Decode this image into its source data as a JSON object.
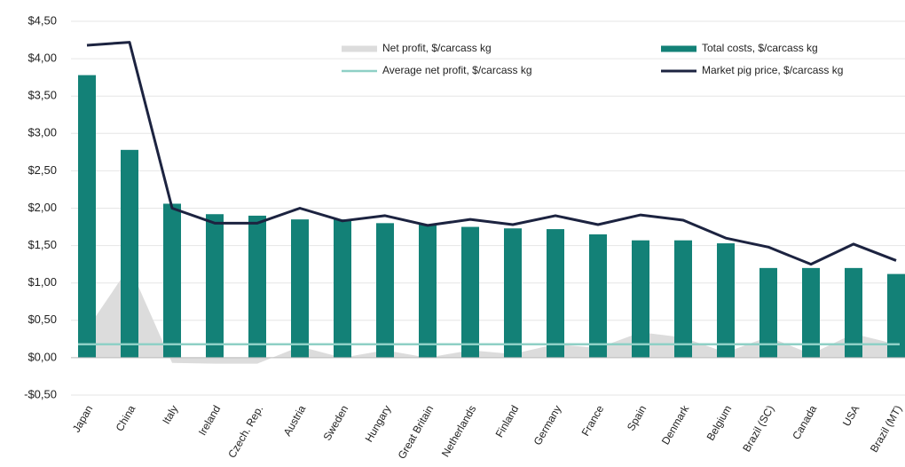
{
  "chart_data": {
    "type": "combo",
    "categories": [
      "Japan",
      "China",
      "Italy",
      "Ireland",
      "Czech. Rep.",
      "Austria",
      "Sweden",
      "Hungary",
      "Great Britain",
      "Netherlands",
      "Finland",
      "Germany",
      "France",
      "Spain",
      "Denmark",
      "Belgium",
      "Brazil (SC)",
      "Canada",
      "USA",
      "Brazil (MT)"
    ],
    "series": [
      {
        "name": "Net profit, $/carcass kg",
        "kind": "area",
        "color": "#dcdcdc",
        "values": [
          0.38,
          1.22,
          -0.07,
          -0.08,
          -0.08,
          0.15,
          0.0,
          0.1,
          0.0,
          0.1,
          0.05,
          0.18,
          0.13,
          0.34,
          0.27,
          0.07,
          0.28,
          0.05,
          0.32,
          0.18
        ]
      },
      {
        "name": "Total costs, $/carcass kg",
        "kind": "bar",
        "color": "#138177",
        "values": [
          3.78,
          2.78,
          2.06,
          1.92,
          1.9,
          1.85,
          1.85,
          1.8,
          1.78,
          1.75,
          1.73,
          1.72,
          1.65,
          1.57,
          1.57,
          1.53,
          1.2,
          1.2,
          1.2,
          1.12
        ]
      },
      {
        "name": "Average net profit, $/carcass kg",
        "kind": "hline",
        "color": "#8fd0c6",
        "value": 0.18
      },
      {
        "name": "Market pig price, $/carcass kg",
        "kind": "line",
        "color": "#1c2340",
        "values": [
          4.18,
          4.22,
          2.0,
          1.8,
          1.8,
          2.0,
          1.83,
          1.9,
          1.77,
          1.85,
          1.78,
          1.9,
          1.78,
          1.91,
          1.84,
          1.6,
          1.48,
          1.25,
          1.52,
          1.3
        ]
      }
    ],
    "ylim": [
      -0.5,
      4.5
    ],
    "yticks": [
      {
        "value": -0.5,
        "label": "-$0,50"
      },
      {
        "value": 0,
        "label": "$0,00"
      },
      {
        "value": 0.5,
        "label": "$0,50"
      },
      {
        "value": 1,
        "label": "$1,00"
      },
      {
        "value": 1.5,
        "label": "$1,50"
      },
      {
        "value": 2,
        "label": "$2,00"
      },
      {
        "value": 2.5,
        "label": "$2,50"
      },
      {
        "value": 3,
        "label": "$3,00"
      },
      {
        "value": 3.5,
        "label": "$3,50"
      },
      {
        "value": 4,
        "label": "$4,00"
      },
      {
        "value": 4.5,
        "label": "$4,50"
      }
    ],
    "grid": true
  }
}
